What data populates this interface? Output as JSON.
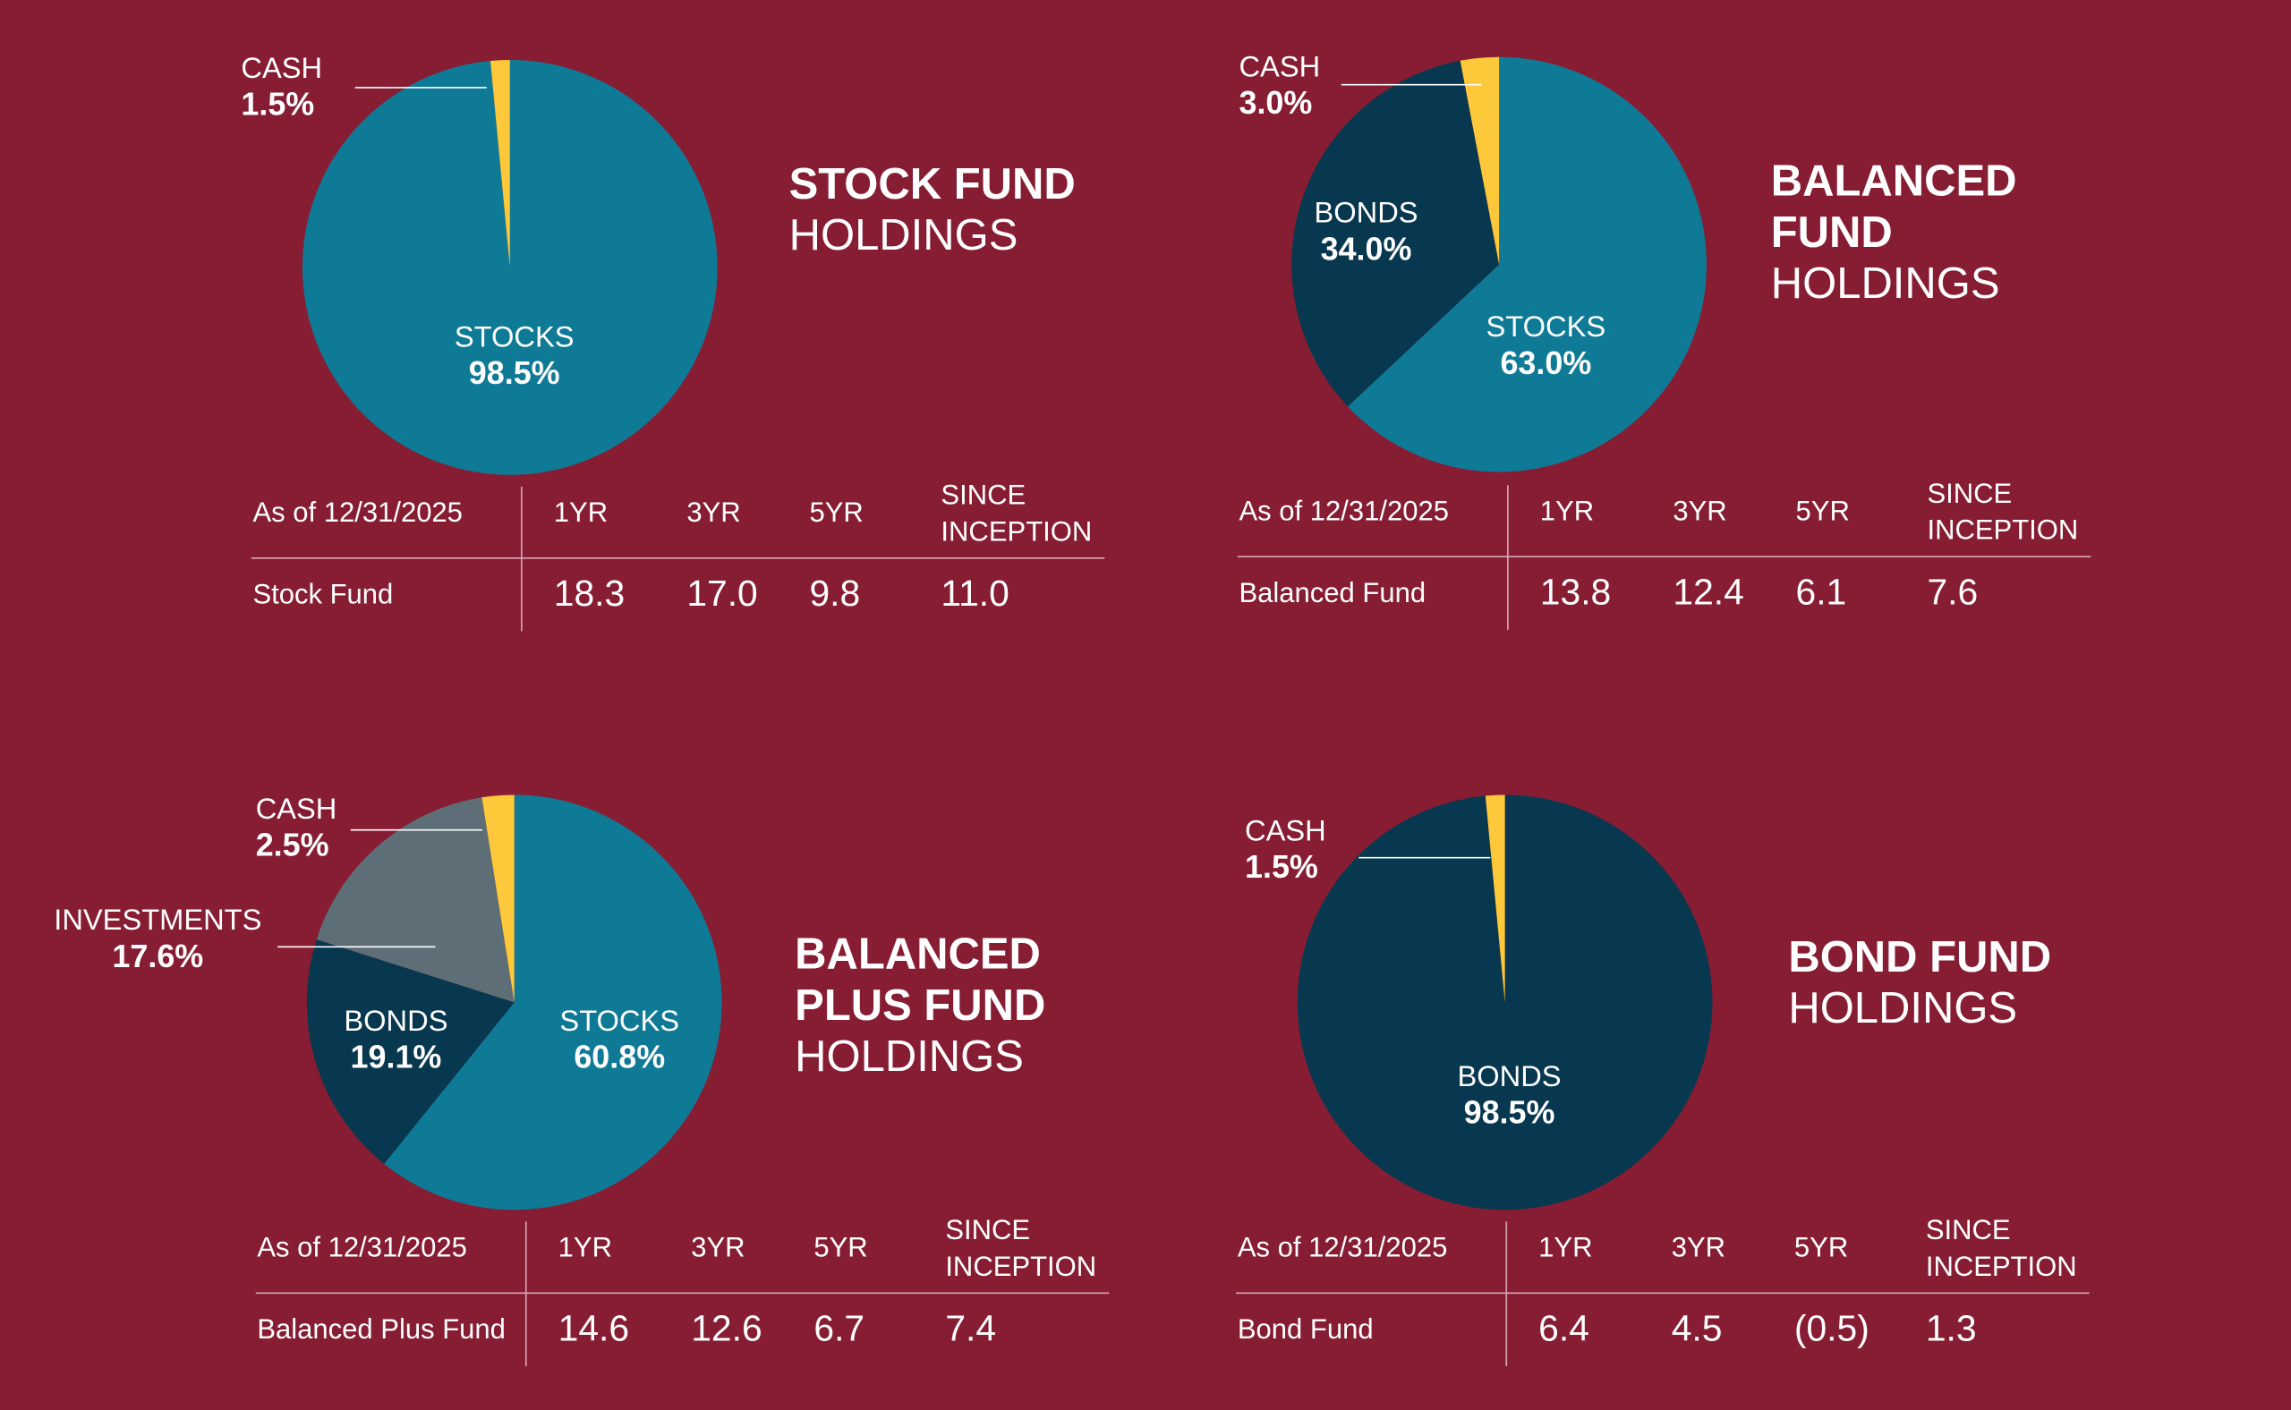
{
  "chart_data": [
    {
      "type": "pie",
      "title": [
        "STOCK FUND"
      ],
      "subtitle": "HOLDINGS",
      "categories": [
        "STOCKS",
        "CASH"
      ],
      "values": [
        98.5,
        1.5
      ],
      "value_labels": [
        "98.5%",
        "1.5%"
      ],
      "colors": [
        "#0f7a96",
        "#fdc83a"
      ],
      "table": {
        "header": [
          "As of 12/31/2025",
          "1YR",
          "3YR",
          "5YR",
          [
            "SINCE",
            "INCEPTION"
          ]
        ],
        "rows": [
          [
            "Stock Fund",
            "18.3",
            "17.0",
            "9.8",
            "11.0"
          ]
        ]
      }
    },
    {
      "type": "pie",
      "title": [
        "BALANCED",
        "FUND"
      ],
      "subtitle": "HOLDINGS",
      "categories": [
        "STOCKS",
        "BONDS",
        "CASH"
      ],
      "values": [
        63.0,
        34.0,
        3.0
      ],
      "value_labels": [
        "63.0%",
        "34.0%",
        "3.0%"
      ],
      "colors": [
        "#0f7a96",
        "#08384f",
        "#fdc83a"
      ],
      "table": {
        "header": [
          "As of 12/31/2025",
          "1YR",
          "3YR",
          "5YR",
          [
            "SINCE",
            "INCEPTION"
          ]
        ],
        "rows": [
          [
            "Balanced Fund",
            "13.8",
            "12.4",
            "6.1",
            "7.6"
          ]
        ]
      }
    },
    {
      "type": "pie",
      "title": [
        "BALANCED",
        "PLUS FUND"
      ],
      "subtitle": "HOLDINGS",
      "categories": [
        "STOCKS",
        "BONDS",
        "INVESTMENTS",
        "CASH"
      ],
      "values": [
        60.8,
        19.1,
        17.6,
        2.5
      ],
      "value_labels": [
        "60.8%",
        "19.1%",
        "17.6%",
        "2.5%"
      ],
      "colors": [
        "#0f7a96",
        "#08384f",
        "#5e6e77",
        "#fdc83a"
      ],
      "table": {
        "header": [
          "As of 12/31/2025",
          "1YR",
          "3YR",
          "5YR",
          [
            "SINCE",
            "INCEPTION"
          ]
        ],
        "rows": [
          [
            "Balanced Plus Fund",
            "14.6",
            "12.6",
            "6.7",
            "7.4"
          ]
        ]
      }
    },
    {
      "type": "pie",
      "title": [
        "BOND FUND"
      ],
      "subtitle": "HOLDINGS",
      "categories": [
        "BONDS",
        "CASH"
      ],
      "values": [
        98.5,
        1.5
      ],
      "value_labels": [
        "98.5%",
        "1.5%"
      ],
      "colors": [
        "#08384f",
        "#fdc83a"
      ],
      "table": {
        "header": [
          "As of 12/31/2025",
          "1YR",
          "3YR",
          "5YR",
          [
            "SINCE",
            "INCEPTION"
          ]
        ],
        "rows": [
          [
            "Bond Fund",
            "6.4",
            "4.5",
            "(0.5)",
            "1.3"
          ]
        ]
      }
    }
  ]
}
